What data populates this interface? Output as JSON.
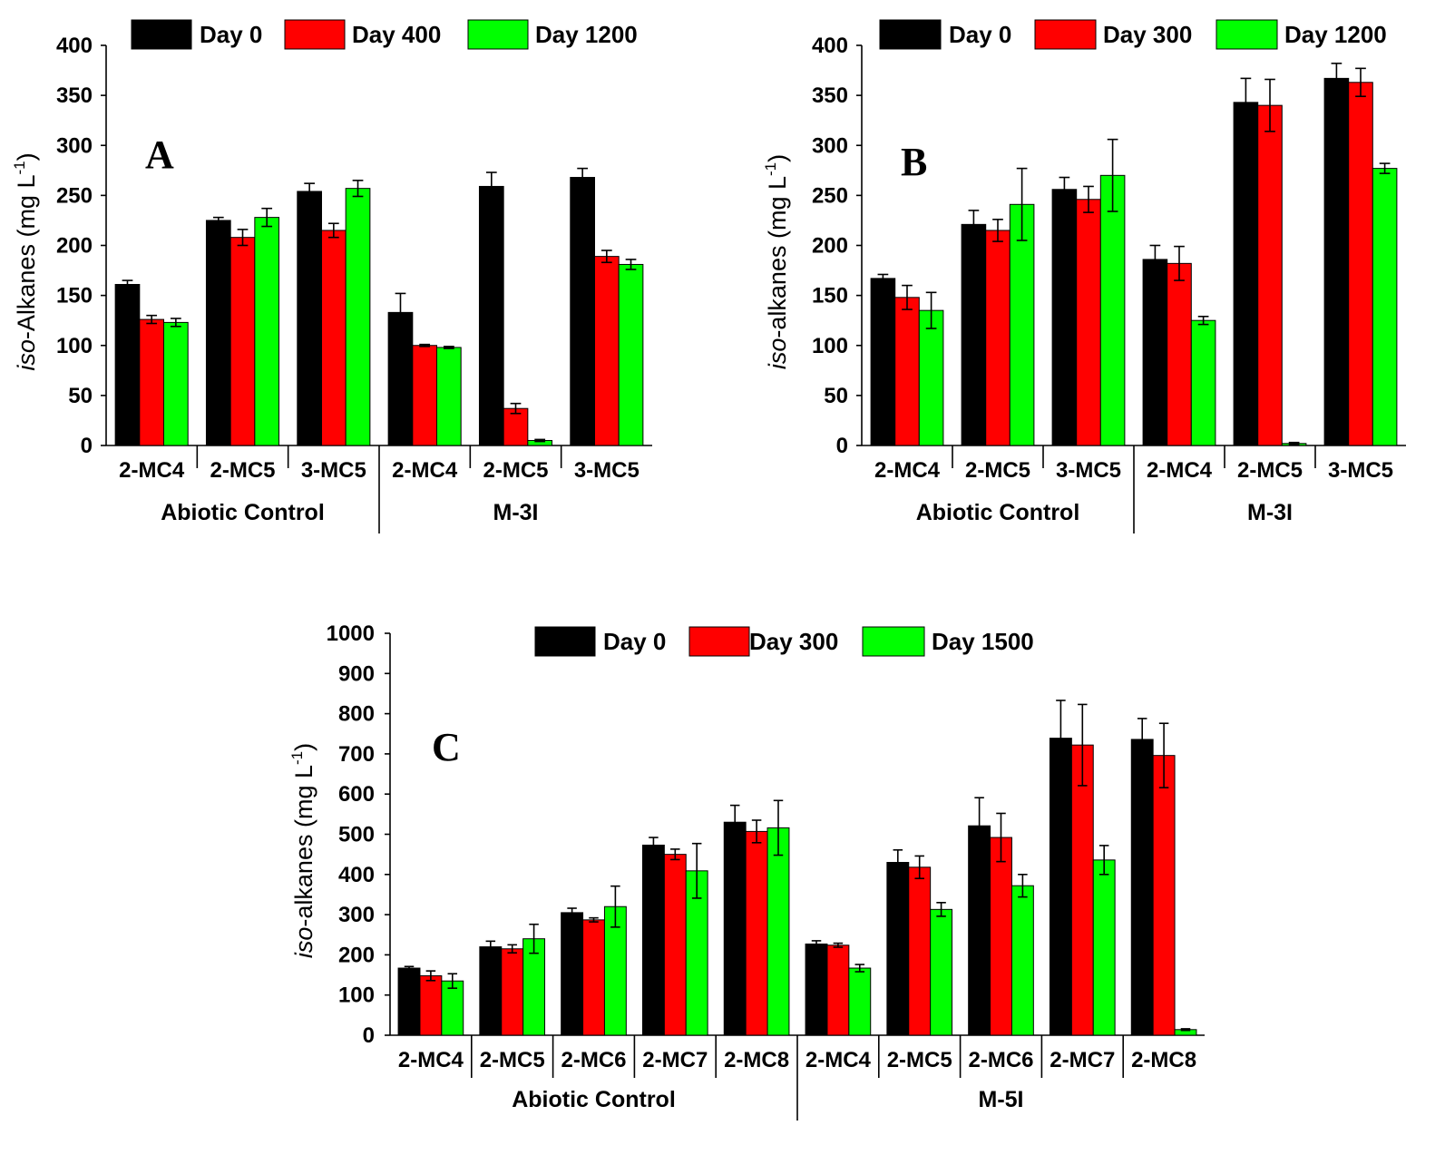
{
  "chart_data": [
    {
      "id": "A",
      "type": "bar",
      "panel_label": "A",
      "ylabel_italic": "iso",
      "ylabel_rest": "-Alkanes (mg L",
      "ylabel_sup": "-1",
      "ylabel_close": ")",
      "ylim": [
        0,
        400
      ],
      "yticks": [
        "0",
        "50",
        "100",
        "150",
        "200",
        "250",
        "300",
        "350",
        "400"
      ],
      "categories": [
        "2-MC4",
        "2-MC5",
        "3-MC5",
        "2-MC4",
        "2-MC5",
        "3-MC5"
      ],
      "groups": [
        {
          "label": "Abiotic Control",
          "count": 3
        },
        {
          "label": "M-3I",
          "count": 3
        }
      ],
      "series": [
        {
          "name": "Day 0",
          "color": "#000000",
          "values": [
            161,
            225,
            254,
            133,
            259,
            268
          ],
          "errors": [
            4,
            3,
            8,
            19,
            14,
            9
          ]
        },
        {
          "name": "Day 400",
          "color": "#ff0000",
          "values": [
            126,
            208,
            215,
            100,
            37,
            189
          ],
          "errors": [
            4,
            8,
            7,
            1,
            5,
            6
          ]
        },
        {
          "name": "Day 1200",
          "color": "#00ff00",
          "values": [
            123,
            228,
            257,
            98,
            5,
            181
          ],
          "errors": [
            4,
            9,
            8,
            1,
            1,
            5
          ]
        }
      ]
    },
    {
      "id": "B",
      "type": "bar",
      "panel_label": "B",
      "ylabel_italic": "iso",
      "ylabel_rest": "-alkanes (mg L",
      "ylabel_sup": "-1",
      "ylabel_close": ")",
      "ylim": [
        0,
        400
      ],
      "yticks": [
        "0",
        "50",
        "100",
        "150",
        "200",
        "250",
        "300",
        "350",
        "400"
      ],
      "categories": [
        "2-MC4",
        "2-MC5",
        "3-MC5",
        "2-MC4",
        "2-MC5",
        "3-MC5"
      ],
      "groups": [
        {
          "label": "Abiotic Control",
          "count": 3
        },
        {
          "label": "M-3I",
          "count": 3
        }
      ],
      "series": [
        {
          "name": "Day 0",
          "color": "#000000",
          "values": [
            167,
            221,
            256,
            186,
            343,
            367
          ],
          "errors": [
            4,
            14,
            12,
            14,
            24,
            15
          ]
        },
        {
          "name": "Day 300",
          "color": "#ff0000",
          "values": [
            148,
            215,
            246,
            182,
            340,
            363
          ],
          "errors": [
            12,
            11,
            13,
            17,
            26,
            14
          ]
        },
        {
          "name": "Day 1200",
          "color": "#00ff00",
          "values": [
            135,
            241,
            270,
            125,
            2,
            277
          ],
          "errors": [
            18,
            36,
            36,
            4,
            1,
            5
          ]
        }
      ]
    },
    {
      "id": "C",
      "type": "bar",
      "panel_label": "C",
      "ylabel_italic": "iso",
      "ylabel_rest": "-alkanes (mg L",
      "ylabel_sup": "-1",
      "ylabel_close": ")",
      "ylim": [
        0,
        1000
      ],
      "yticks": [
        "0",
        "100",
        "200",
        "300",
        "400",
        "500",
        "600",
        "700",
        "800",
        "900",
        "1000"
      ],
      "categories": [
        "2-MC4",
        "2-MC5",
        "2-MC6",
        "2-MC7",
        "2-MC8",
        "2-MC4",
        "2-MC5",
        "2-MC6",
        "2-MC7",
        "2-MC8"
      ],
      "groups": [
        {
          "label": "Abiotic Control",
          "count": 5
        },
        {
          "label": "M-5I",
          "count": 5
        }
      ],
      "series": [
        {
          "name": "Day 0",
          "color": "#000000",
          "values": [
            167,
            220,
            305,
            473,
            530,
            227,
            430,
            521,
            739,
            736
          ],
          "errors": [
            4,
            14,
            11,
            19,
            42,
            8,
            31,
            70,
            94,
            52
          ]
        },
        {
          "name": "Day 300",
          "color": "#ff0000",
          "values": [
            148,
            215,
            287,
            450,
            507,
            224,
            418,
            492,
            722,
            696
          ],
          "errors": [
            12,
            10,
            5,
            13,
            28,
            5,
            28,
            60,
            101,
            80
          ]
        },
        {
          "name": "Day 1500",
          "color": "#00ff00",
          "values": [
            135,
            240,
            320,
            409,
            516,
            167,
            313,
            372,
            436,
            14
          ],
          "errors": [
            18,
            36,
            51,
            68,
            68,
            9,
            17,
            28,
            36,
            2
          ]
        }
      ]
    }
  ]
}
